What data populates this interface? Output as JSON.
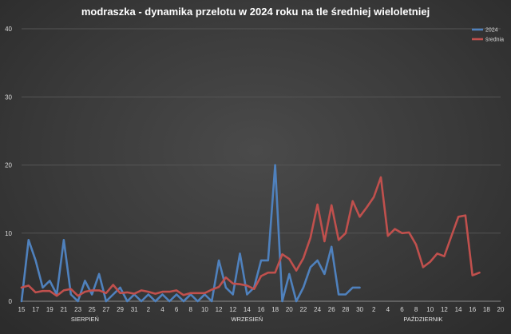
{
  "chart_data": {
    "type": "line",
    "title": "modraszka  - dynamika  przelotu  w 2024 roku  na  tle  średniej  wieloletniej",
    "ylim": [
      0,
      40
    ],
    "yticks": [
      "0",
      "10",
      "20",
      "30",
      "40"
    ],
    "grid": true,
    "legend_position": "top-right",
    "xticks": [
      "15",
      "17",
      "19",
      "21",
      "23",
      "25",
      "27",
      "29",
      "31",
      "2",
      "4",
      "6",
      "8",
      "10",
      "12",
      "12",
      "14",
      "16",
      "18",
      "20",
      "22",
      "24",
      "26",
      "28",
      "30",
      "2",
      "4",
      "6",
      "8",
      "10",
      "12",
      "14",
      "16",
      "18",
      "20"
    ],
    "months": [
      {
        "label": "SIERPIEŃ",
        "at_tick": 4.5
      },
      {
        "label": "WRZESIEŃ",
        "at_tick": 16
      },
      {
        "label": "PAŹDZIERNIK",
        "at_tick": 28.5
      }
    ],
    "series": [
      {
        "name": "2024",
        "color": "#4f81bd",
        "values": [
          0,
          9,
          6,
          2,
          3,
          1,
          9,
          1,
          0,
          3,
          1,
          4,
          0,
          1,
          2,
          0,
          1,
          0,
          1,
          0,
          1,
          0,
          1,
          0,
          1,
          0,
          1,
          0,
          6,
          2,
          1,
          7,
          1,
          2,
          6,
          6,
          20,
          0,
          4,
          0,
          2,
          5,
          6,
          4,
          8,
          1,
          1,
          2,
          2
        ]
      },
      {
        "name": "średnia",
        "color": "#c0504d",
        "values": [
          2,
          2.3,
          1.3,
          1.5,
          1.5,
          0.8,
          1.6,
          1.8,
          0.8,
          1.4,
          1.6,
          1.6,
          1.2,
          2.4,
          1.2,
          1.3,
          1.1,
          1.6,
          1.4,
          1.1,
          1.4,
          1.4,
          1.6,
          0.9,
          1.2,
          1.2,
          1.2,
          1.7,
          2.1,
          3.5,
          2.6,
          2.5,
          2.3,
          1.8,
          3.7,
          4.2,
          4.2,
          6.9,
          6.2,
          4.5,
          6.3,
          9.3,
          14.2,
          8.8,
          14.1,
          9,
          10,
          14.7,
          12.4,
          13.8,
          15.3,
          18.2,
          9.6,
          10.6,
          10,
          10.1,
          8.3,
          5,
          5.8,
          7,
          6.6,
          9.5,
          12.4,
          12.6,
          3.8,
          4.2
        ]
      }
    ]
  }
}
